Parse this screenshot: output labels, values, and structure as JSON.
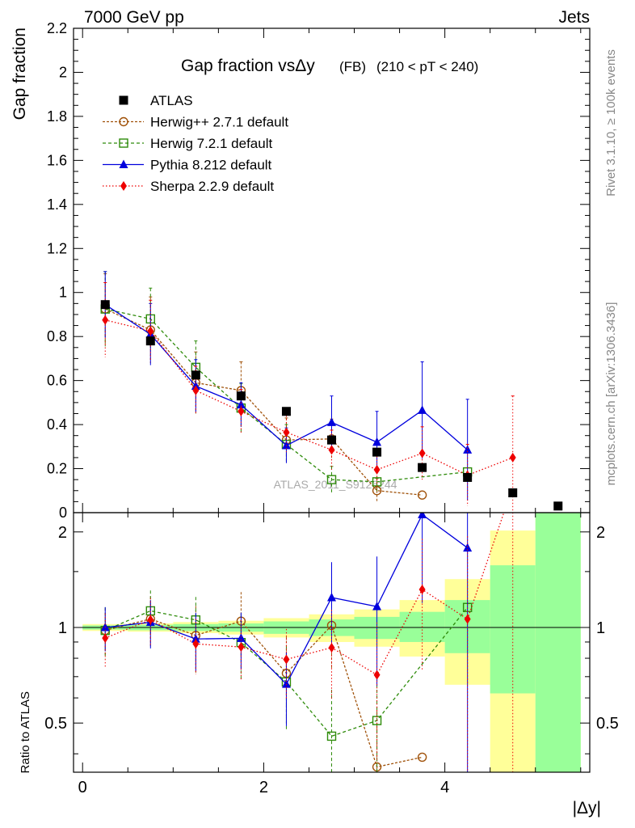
{
  "header": {
    "left": "7000 GeV pp",
    "right": "Jets"
  },
  "side_labels": {
    "rivet": "Rivet 3.1.10, ≥ 100k events",
    "mcplots": "mcplots.cern.ch [arXiv:1306.3436]"
  },
  "watermark": "ATLAS_2011_S9126244",
  "chart_data": {
    "type": "scatter",
    "title_main": "Gap fraction vsΔy",
    "title_fb": "(FB)",
    "title_range": "(210 < pT < 240)",
    "xlabel": "|Δy|",
    "ylabel_top": "Gap fraction",
    "ylabel_bottom": "Ratio to ATLAS",
    "xlim": [
      -0.1,
      5.6
    ],
    "ylim_top": [
      0,
      2.2
    ],
    "ylim_bottom": [
      0.35,
      2.3
    ],
    "xticks": [
      0,
      2,
      4
    ],
    "xtick_labels": [
      "0",
      "2",
      "4"
    ],
    "yticks_top": [
      0,
      0.2,
      0.4,
      0.6,
      0.8,
      1,
      1.2,
      1.4,
      1.6,
      1.8,
      2,
      2.2
    ],
    "ytick_labels_top": [
      "0",
      "0.2",
      "0.4",
      "0.6",
      "0.8",
      "1",
      "1.2",
      "1.4",
      "1.6",
      "1.8",
      "2",
      "2.2"
    ],
    "yticks_bottom": [
      0.5,
      1,
      2
    ],
    "ytick_labels_bottom": [
      "0.5",
      "1",
      "2"
    ],
    "data": {
      "name": "ATLAS",
      "color": "#000000",
      "x": [
        0.25,
        0.75,
        1.25,
        1.75,
        2.25,
        2.75,
        3.25,
        3.75,
        4.25,
        4.75,
        5.25
      ],
      "y": [
        0.945,
        0.78,
        0.625,
        0.53,
        0.46,
        0.33,
        0.275,
        0.205,
        0.16,
        0.09,
        0.03
      ]
    },
    "bands": [
      {
        "x0": 0.0,
        "x1": 0.5,
        "yellow": [
          0.975,
          1.025
        ],
        "green": [
          0.985,
          1.015
        ]
      },
      {
        "x0": 0.5,
        "x1": 1.0,
        "yellow": [
          0.97,
          1.03
        ],
        "green": [
          0.98,
          1.02
        ]
      },
      {
        "x0": 1.0,
        "x1": 1.5,
        "yellow": [
          0.96,
          1.04
        ],
        "green": [
          0.975,
          1.025
        ]
      },
      {
        "x0": 1.5,
        "x1": 2.0,
        "yellow": [
          0.95,
          1.05
        ],
        "green": [
          0.97,
          1.03
        ]
      },
      {
        "x0": 2.0,
        "x1": 2.5,
        "yellow": [
          0.93,
          1.07
        ],
        "green": [
          0.955,
          1.045
        ]
      },
      {
        "x0": 2.5,
        "x1": 3.0,
        "yellow": [
          0.9,
          1.1
        ],
        "green": [
          0.94,
          1.06
        ]
      },
      {
        "x0": 3.0,
        "x1": 3.5,
        "yellow": [
          0.87,
          1.14
        ],
        "green": [
          0.92,
          1.08
        ]
      },
      {
        "x0": 3.5,
        "x1": 4.0,
        "yellow": [
          0.81,
          1.22
        ],
        "green": [
          0.9,
          1.12
        ]
      },
      {
        "x0": 4.0,
        "x1": 4.5,
        "yellow": [
          0.66,
          1.42
        ],
        "green": [
          0.83,
          1.22
        ]
      },
      {
        "x0": 4.5,
        "x1": 5.0,
        "yellow": [
          0.35,
          2.02
        ],
        "green": [
          0.62,
          1.57
        ]
      },
      {
        "x0": 5.0,
        "x1": 5.5,
        "yellow": [
          0.35,
          2.3
        ],
        "green": [
          0.35,
          2.3
        ]
      }
    ],
    "series": [
      {
        "name": "Herwig++ 2.7.1 default",
        "color": "#a0520a",
        "marker": "circle",
        "dash": "3,2",
        "x": [
          0.25,
          0.75,
          1.25,
          1.75,
          2.25,
          2.75,
          3.25,
          3.75
        ],
        "y": [
          0.925,
          0.83,
          0.59,
          0.555,
          0.33,
          0.335,
          0.1,
          0.08
        ],
        "err": [
          0.16,
          0.15,
          0.14,
          0.13,
          0.1,
          0.09,
          0.055,
          0.0
        ]
      },
      {
        "name": "Herwig 7.2.1 default",
        "color": "#2e8b0a",
        "marker": "square",
        "dash": "4,3",
        "x": [
          0.25,
          0.75,
          1.25,
          1.75,
          2.25,
          2.75,
          3.25,
          4.25
        ],
        "y": [
          0.925,
          0.88,
          0.66,
          0.475,
          0.31,
          0.15,
          0.14,
          0.185
        ],
        "err": [
          0.17,
          0.14,
          0.12,
          0.11,
          0.09,
          0.06,
          0.05,
          0.0
        ]
      },
      {
        "name": "Pythia 8.212 default",
        "color": "#0000dd",
        "marker": "triangle",
        "dash": "",
        "x": [
          0.25,
          0.75,
          1.25,
          1.75,
          2.25,
          2.75,
          3.25,
          3.75,
          4.25
        ],
        "y": [
          0.945,
          0.81,
          0.575,
          0.49,
          0.305,
          0.41,
          0.32,
          0.465,
          0.285
        ],
        "err": [
          0.15,
          0.14,
          0.12,
          0.1,
          0.08,
          0.12,
          0.14,
          0.22,
          0.23
        ]
      },
      {
        "name": "Sherpa 2.2.9 default",
        "color": "#ee0000",
        "marker": "diamond",
        "dash": "1.5,2.5",
        "x": [
          0.25,
          0.75,
          1.25,
          1.75,
          2.25,
          2.75,
          3.25,
          3.75,
          4.25,
          4.75
        ],
        "y": [
          0.875,
          0.825,
          0.555,
          0.46,
          0.365,
          0.285,
          0.195,
          0.27,
          0.17,
          0.25
        ],
        "err": [
          0.17,
          0.14,
          0.11,
          0.1,
          0.09,
          0.09,
          0.09,
          0.12,
          0.14,
          0.28
        ]
      }
    ]
  }
}
